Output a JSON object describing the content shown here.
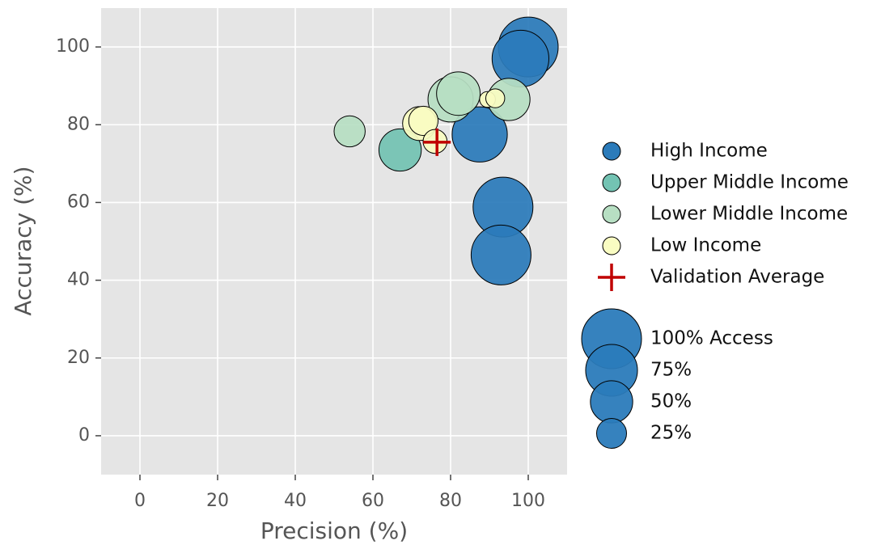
{
  "chart_data": {
    "type": "scatter",
    "x_label": "Precision (%)",
    "y_label": "Accuracy (%)",
    "xlim": [
      -10,
      110
    ],
    "ylim": [
      -10,
      110
    ],
    "xticks": [
      0,
      20,
      40,
      60,
      80,
      100
    ],
    "yticks": [
      0,
      20,
      40,
      60,
      80,
      100
    ],
    "grid": true,
    "legend": "right",
    "series": [
      {
        "name": "High Income",
        "color": "#2b7bba",
        "x": [
          100,
          98,
          87.5,
          93.5,
          93
        ],
        "y": [
          100,
          97,
          77.5,
          58.8,
          46.5
        ],
        "sizes": [
          100,
          90,
          85,
          100,
          100
        ]
      },
      {
        "name": "Upper Middle Income",
        "color": "#73c3b3",
        "x": [
          67
        ],
        "y": [
          73.5
        ],
        "sizes": [
          50
        ]
      },
      {
        "name": "Lower Middle Income",
        "color": "#b7dfc3",
        "x": [
          54,
          80,
          82,
          95
        ],
        "y": [
          78.3,
          86.5,
          88,
          86.5
        ],
        "sizes": [
          27,
          57,
          53,
          50
        ]
      },
      {
        "name": "Low Income",
        "color": "#f9fcc2",
        "x": [
          72,
          73,
          89.5,
          91.5,
          76
        ],
        "y": [
          80.3,
          81,
          86.5,
          86.8,
          75.7
        ],
        "sizes": [
          32,
          24,
          7,
          10,
          16
        ]
      }
    ],
    "marker": {
      "name": "Validation Average",
      "color": "#c00000",
      "x": 76.5,
      "y": 75.5
    },
    "size_legend": [
      {
        "value": 100,
        "label": "100% Access"
      },
      {
        "value": 75,
        "label": "75%"
      },
      {
        "value": 50,
        "label": "50%"
      },
      {
        "value": 25,
        "label": "25%"
      }
    ]
  }
}
